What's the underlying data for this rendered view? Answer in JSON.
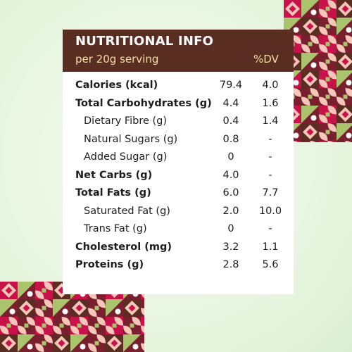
{
  "header": {
    "title": "NUTRITIONAL INFO",
    "serving": "per 20g serving",
    "dv_label": "%DV"
  },
  "rows": [
    {
      "label": "Calories (kcal)",
      "value": "79.4",
      "dv": "4.0",
      "bold": true,
      "sub": false
    },
    {
      "label": "Total Carbohydrates (g)",
      "value": "4.4",
      "dv": "1.6",
      "bold": true,
      "sub": false
    },
    {
      "label": "Dietary Fibre (g)",
      "value": "0.4",
      "dv": "1.4",
      "bold": false,
      "sub": true
    },
    {
      "label": "Natural Sugars (g)",
      "value": "0.8",
      "dv": "-",
      "bold": false,
      "sub": true
    },
    {
      "label": "Added Sugar (g)",
      "value": "0",
      "dv": "-",
      "bold": false,
      "sub": true
    },
    {
      "label": "Net Carbs (g)",
      "value": "4.0",
      "dv": "-",
      "bold": true,
      "sub": false
    },
    {
      "label": "Total Fats (g)",
      "value": "6.0",
      "dv": "7.7",
      "bold": true,
      "sub": false
    },
    {
      "label": "Saturated Fat (g)",
      "value": "2.0",
      "dv": "10.0",
      "bold": false,
      "sub": true
    },
    {
      "label": "Trans Fat (g)",
      "value": "0",
      "dv": "-",
      "bold": false,
      "sub": true
    },
    {
      "label": "Cholesterol (mg)",
      "value": "3.2",
      "dv": "1.1",
      "bold": true,
      "sub": false
    },
    {
      "label": "Proteins (g)",
      "value": "2.8",
      "dv": "5.6",
      "bold": true,
      "sub": false
    }
  ],
  "colors": {
    "header_bg": "#5a2d22",
    "header_title": "#ffffff",
    "header_accent": "#f3dfa3",
    "pattern": [
      "#c8124a",
      "#7a1f2e",
      "#a9c46c",
      "#f6c6b8",
      "#ffffff",
      "#5a2d22"
    ]
  }
}
